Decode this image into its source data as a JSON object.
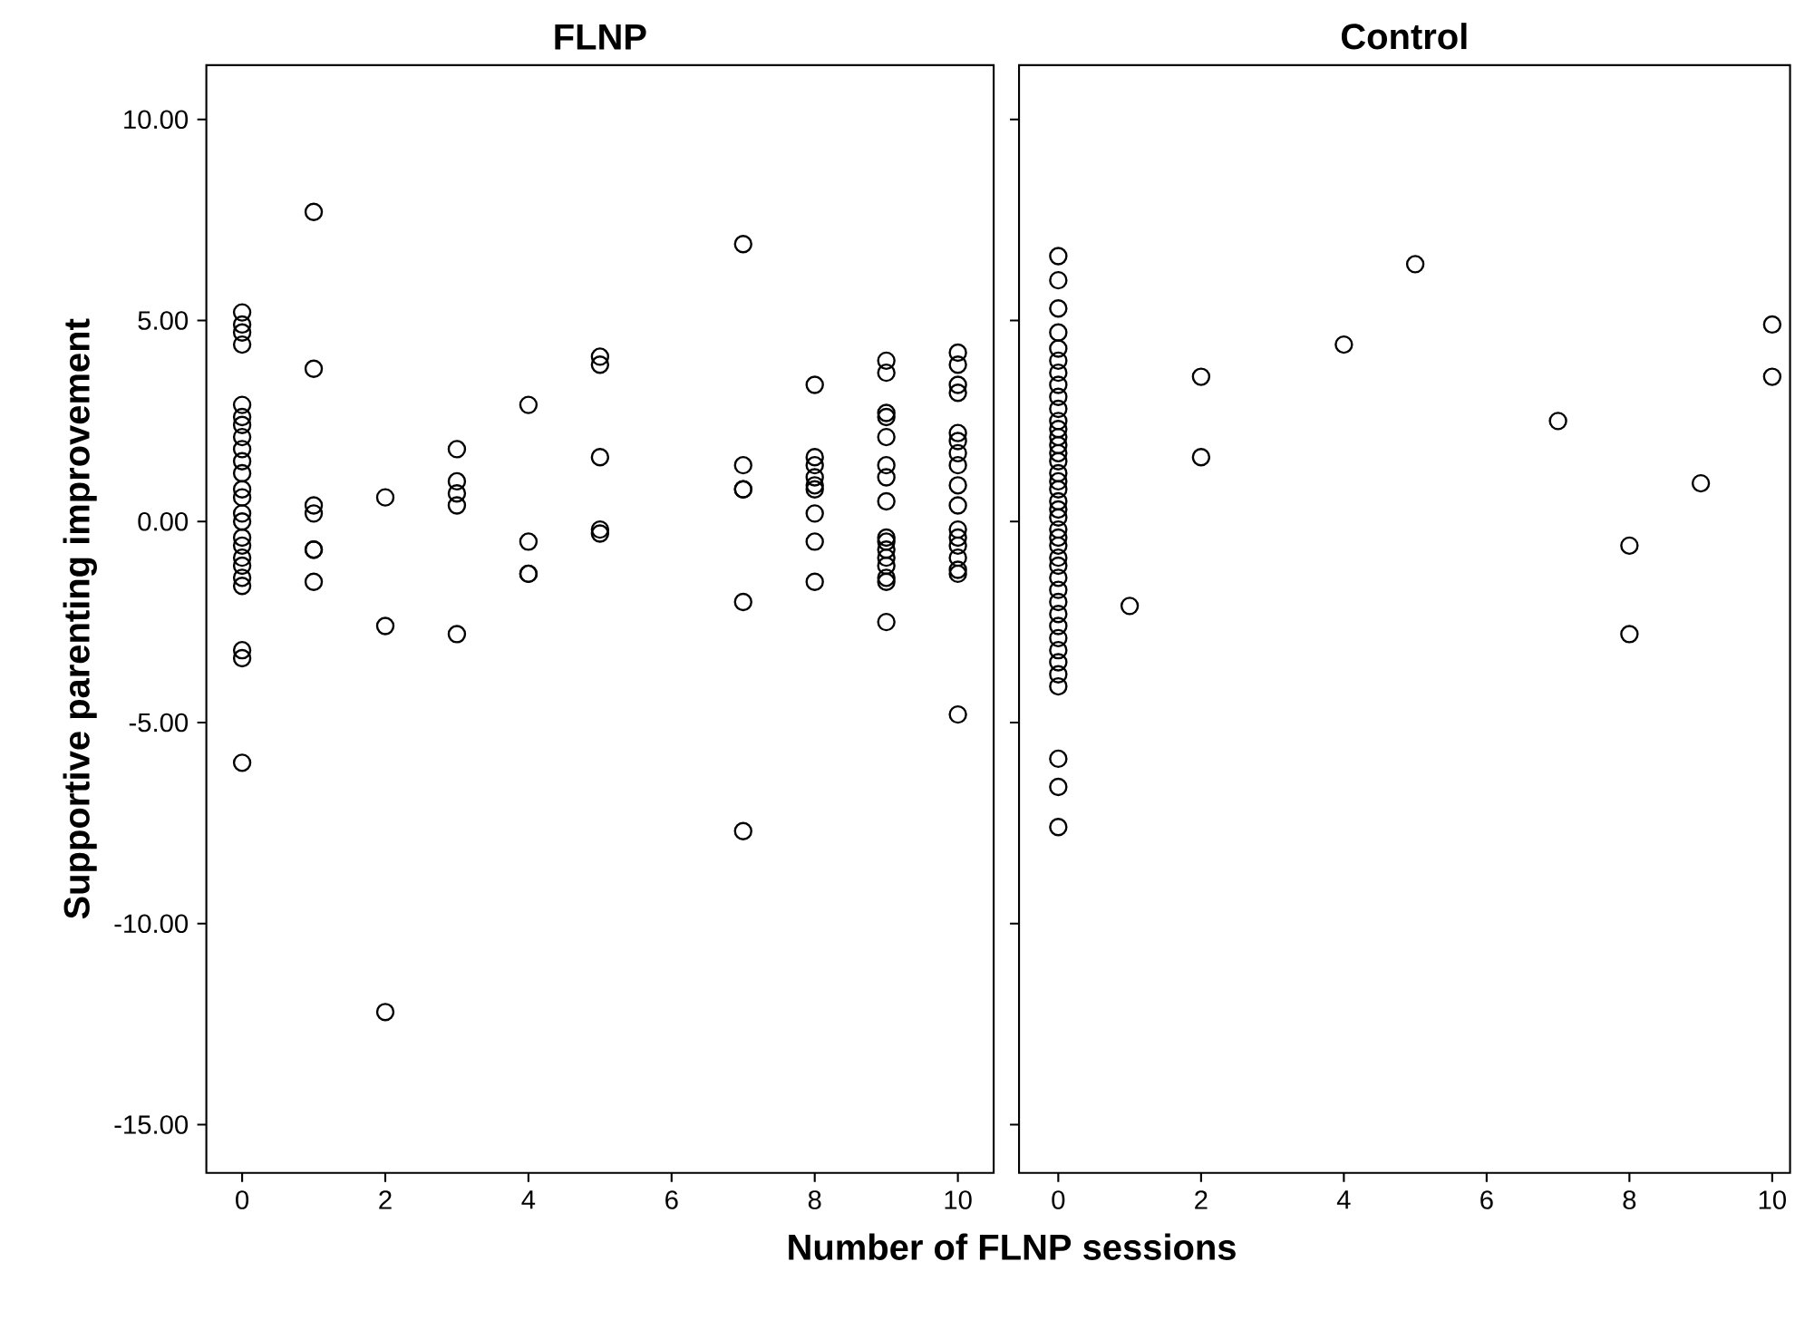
{
  "chart_data": [
    {
      "type": "scatter",
      "title": "FLNP",
      "xlabel": "Number of FLNP sessions",
      "ylabel": "Supportive parenting improvement",
      "marker": "circle",
      "grid": false,
      "xlim": [
        -0.5,
        10.5
      ],
      "ylim": [
        -16.2,
        11.35
      ],
      "xticks": [
        0,
        2,
        4,
        6,
        8,
        10
      ],
      "yticks": [
        {
          "value": 10,
          "label": "10.00"
        },
        {
          "value": 5,
          "label": "5.00"
        },
        {
          "value": 0,
          "label": "0.00"
        },
        {
          "value": -5,
          "label": "-5.00"
        },
        {
          "value": -10,
          "label": "-10.00"
        },
        {
          "value": -15,
          "label": "-15.00"
        }
      ],
      "series": [
        {
          "color": "#000000",
          "x": [
            0,
            0,
            0,
            0,
            0,
            0,
            0,
            0,
            0,
            0,
            0,
            0,
            0,
            0,
            0,
            0,
            0,
            0,
            0,
            0,
            0,
            0,
            0,
            0,
            1,
            1,
            1,
            1,
            1,
            1,
            1,
            2,
            2,
            2,
            3,
            3,
            3,
            3,
            3,
            4,
            4,
            4,
            4,
            5,
            5,
            5,
            5,
            5,
            7,
            7,
            7,
            7,
            7,
            7,
            8,
            8,
            8,
            8,
            8,
            8,
            8,
            8,
            8,
            9,
            9,
            9,
            9,
            9,
            9,
            9,
            9,
            9,
            9,
            9,
            9,
            9,
            9,
            9,
            9,
            10,
            10,
            10,
            10,
            10,
            10,
            10,
            10,
            10,
            10,
            10,
            10,
            10,
            10,
            10,
            10,
            10
          ],
          "values": [
            5.2,
            4.9,
            4.7,
            4.4,
            2.9,
            2.6,
            2.4,
            2.1,
            1.8,
            1.5,
            1.2,
            0.8,
            0.6,
            0.2,
            0.0,
            -0.4,
            -0.6,
            -0.9,
            -1.1,
            -1.4,
            -1.6,
            -3.2,
            -3.4,
            -6.0,
            7.7,
            3.8,
            0.4,
            0.2,
            -0.7,
            -0.7,
            -1.5,
            0.6,
            -2.6,
            -12.2,
            1.8,
            1.0,
            0.7,
            0.4,
            -2.8,
            2.9,
            -0.5,
            -1.3,
            -1.3,
            4.1,
            3.9,
            1.6,
            -0.2,
            -0.3,
            6.9,
            1.4,
            0.8,
            0.8,
            -2.0,
            -7.7,
            3.4,
            1.6,
            1.4,
            1.1,
            0.9,
            0.8,
            0.2,
            -0.5,
            -1.5,
            4.0,
            3.7,
            2.7,
            2.6,
            2.1,
            1.4,
            1.1,
            0.5,
            -0.4,
            -0.5,
            -0.7,
            -0.9,
            -1.1,
            -1.4,
            -1.5,
            -2.5,
            4.2,
            3.9,
            3.4,
            3.2,
            2.2,
            2.0,
            1.7,
            1.4,
            0.9,
            0.4,
            -0.2,
            -0.4,
            -0.6,
            -0.9,
            -1.2,
            -1.3,
            -4.8
          ]
        }
      ]
    },
    {
      "type": "scatter",
      "title": "Control",
      "marker": "circle",
      "grid": false,
      "tick_labels": "x",
      "xlim": [
        -0.55,
        10.25
      ],
      "ylim": [
        -16.2,
        11.35
      ],
      "xticks": [
        0,
        2,
        4,
        6,
        8,
        10
      ],
      "yticks": [
        {
          "value": 10,
          "label": null
        },
        {
          "value": 5,
          "label": null
        },
        {
          "value": 0,
          "label": null
        },
        {
          "value": -5,
          "label": null
        },
        {
          "value": -10,
          "label": null
        },
        {
          "value": -15,
          "label": null
        }
      ],
      "series": [
        {
          "color": "#000000",
          "x": [
            0,
            0,
            0,
            0,
            0,
            0,
            0,
            0,
            0,
            0,
            0,
            0,
            0,
            0,
            0,
            0,
            0,
            0,
            0,
            0,
            0,
            0,
            0,
            0,
            0,
            0,
            0,
            0,
            0,
            0,
            0,
            0,
            0,
            0,
            0,
            0,
            0,
            0,
            0,
            0,
            1,
            2,
            2,
            4,
            5,
            7,
            8,
            8,
            9,
            10,
            10
          ],
          "values": [
            6.6,
            6.0,
            5.3,
            4.7,
            4.3,
            4.0,
            3.7,
            3.4,
            3.1,
            2.8,
            2.5,
            2.3,
            2.1,
            1.9,
            1.7,
            1.5,
            1.2,
            1.0,
            0.8,
            0.5,
            0.3,
            0.1,
            -0.2,
            -0.4,
            -0.6,
            -0.9,
            -1.1,
            -1.4,
            -1.7,
            -2.0,
            -2.3,
            -2.6,
            -2.9,
            -3.2,
            -3.5,
            -3.8,
            -4.1,
            -5.9,
            -6.6,
            -7.6,
            -2.1,
            3.6,
            1.6,
            4.4,
            6.4,
            2.5,
            -0.6,
            -2.8,
            0.95,
            4.9,
            3.6
          ]
        }
      ]
    }
  ]
}
